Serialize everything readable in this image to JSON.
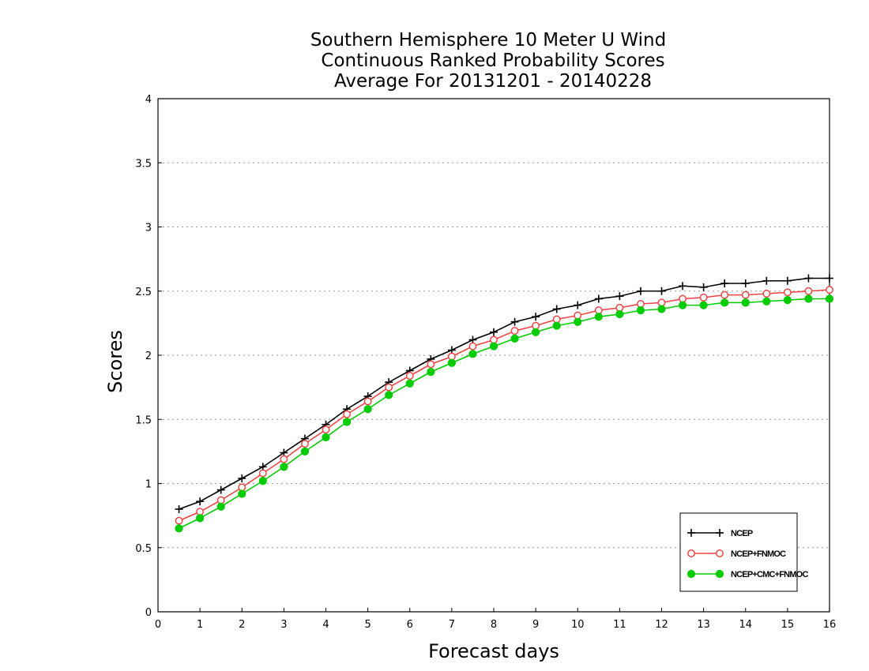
{
  "chart_data": {
    "type": "line",
    "title_lines": [
      "Southern Hemisphere 10 Meter U Wind",
      "Continuous Ranked Probability Scores",
      "Average For 20131201 - 20140228"
    ],
    "xlabel": "Forecast days",
    "ylabel": "Scores",
    "xlim": [
      0,
      16
    ],
    "ylim": [
      0,
      4
    ],
    "x_ticks": [
      "0",
      "1",
      "2",
      "3",
      "4",
      "5",
      "6",
      "7",
      "8",
      "9",
      "10",
      "11",
      "12",
      "13",
      "14",
      "15",
      "16"
    ],
    "y_ticks": [
      "0",
      "0.5",
      "1",
      "1.5",
      "2",
      "2.5",
      "3",
      "3.5",
      "4"
    ],
    "grid": "horizontal dotted",
    "legend_position": "bottom-right",
    "x": [
      0.5,
      1,
      1.5,
      2,
      2.5,
      3,
      3.5,
      4,
      4.5,
      5,
      5.5,
      6,
      6.5,
      7,
      7.5,
      8,
      8.5,
      9,
      9.5,
      10,
      10.5,
      11,
      11.5,
      12,
      12.5,
      13,
      13.5,
      14,
      14.5,
      15,
      15.5,
      16
    ],
    "series": [
      {
        "name": "NCEP",
        "color": "#000000",
        "marker": "plus",
        "values": [
          0.8,
          0.86,
          0.95,
          1.04,
          1.13,
          1.24,
          1.35,
          1.46,
          1.58,
          1.68,
          1.79,
          1.88,
          1.97,
          2.04,
          2.12,
          2.18,
          2.26,
          2.3,
          2.36,
          2.39,
          2.44,
          2.46,
          2.5,
          2.5,
          2.54,
          2.53,
          2.56,
          2.56,
          2.58,
          2.58,
          2.6,
          2.6
        ]
      },
      {
        "name": "NCEP+FNMOC",
        "color": "#ee4444",
        "marker": "open-circle",
        "values": [
          0.71,
          0.78,
          0.87,
          0.97,
          1.08,
          1.19,
          1.31,
          1.42,
          1.54,
          1.64,
          1.75,
          1.84,
          1.93,
          1.99,
          2.07,
          2.12,
          2.19,
          2.23,
          2.28,
          2.31,
          2.35,
          2.37,
          2.4,
          2.41,
          2.44,
          2.45,
          2.47,
          2.47,
          2.48,
          2.49,
          2.5,
          2.51
        ]
      },
      {
        "name": "NCEP+CMC+FNMOC",
        "color": "#00cc00",
        "marker": "filled-circle",
        "values": [
          0.65,
          0.73,
          0.82,
          0.92,
          1.02,
          1.13,
          1.25,
          1.36,
          1.48,
          1.58,
          1.69,
          1.78,
          1.87,
          1.94,
          2.01,
          2.07,
          2.13,
          2.18,
          2.23,
          2.26,
          2.3,
          2.32,
          2.35,
          2.36,
          2.39,
          2.39,
          2.41,
          2.41,
          2.42,
          2.43,
          2.44,
          2.44
        ]
      }
    ]
  }
}
